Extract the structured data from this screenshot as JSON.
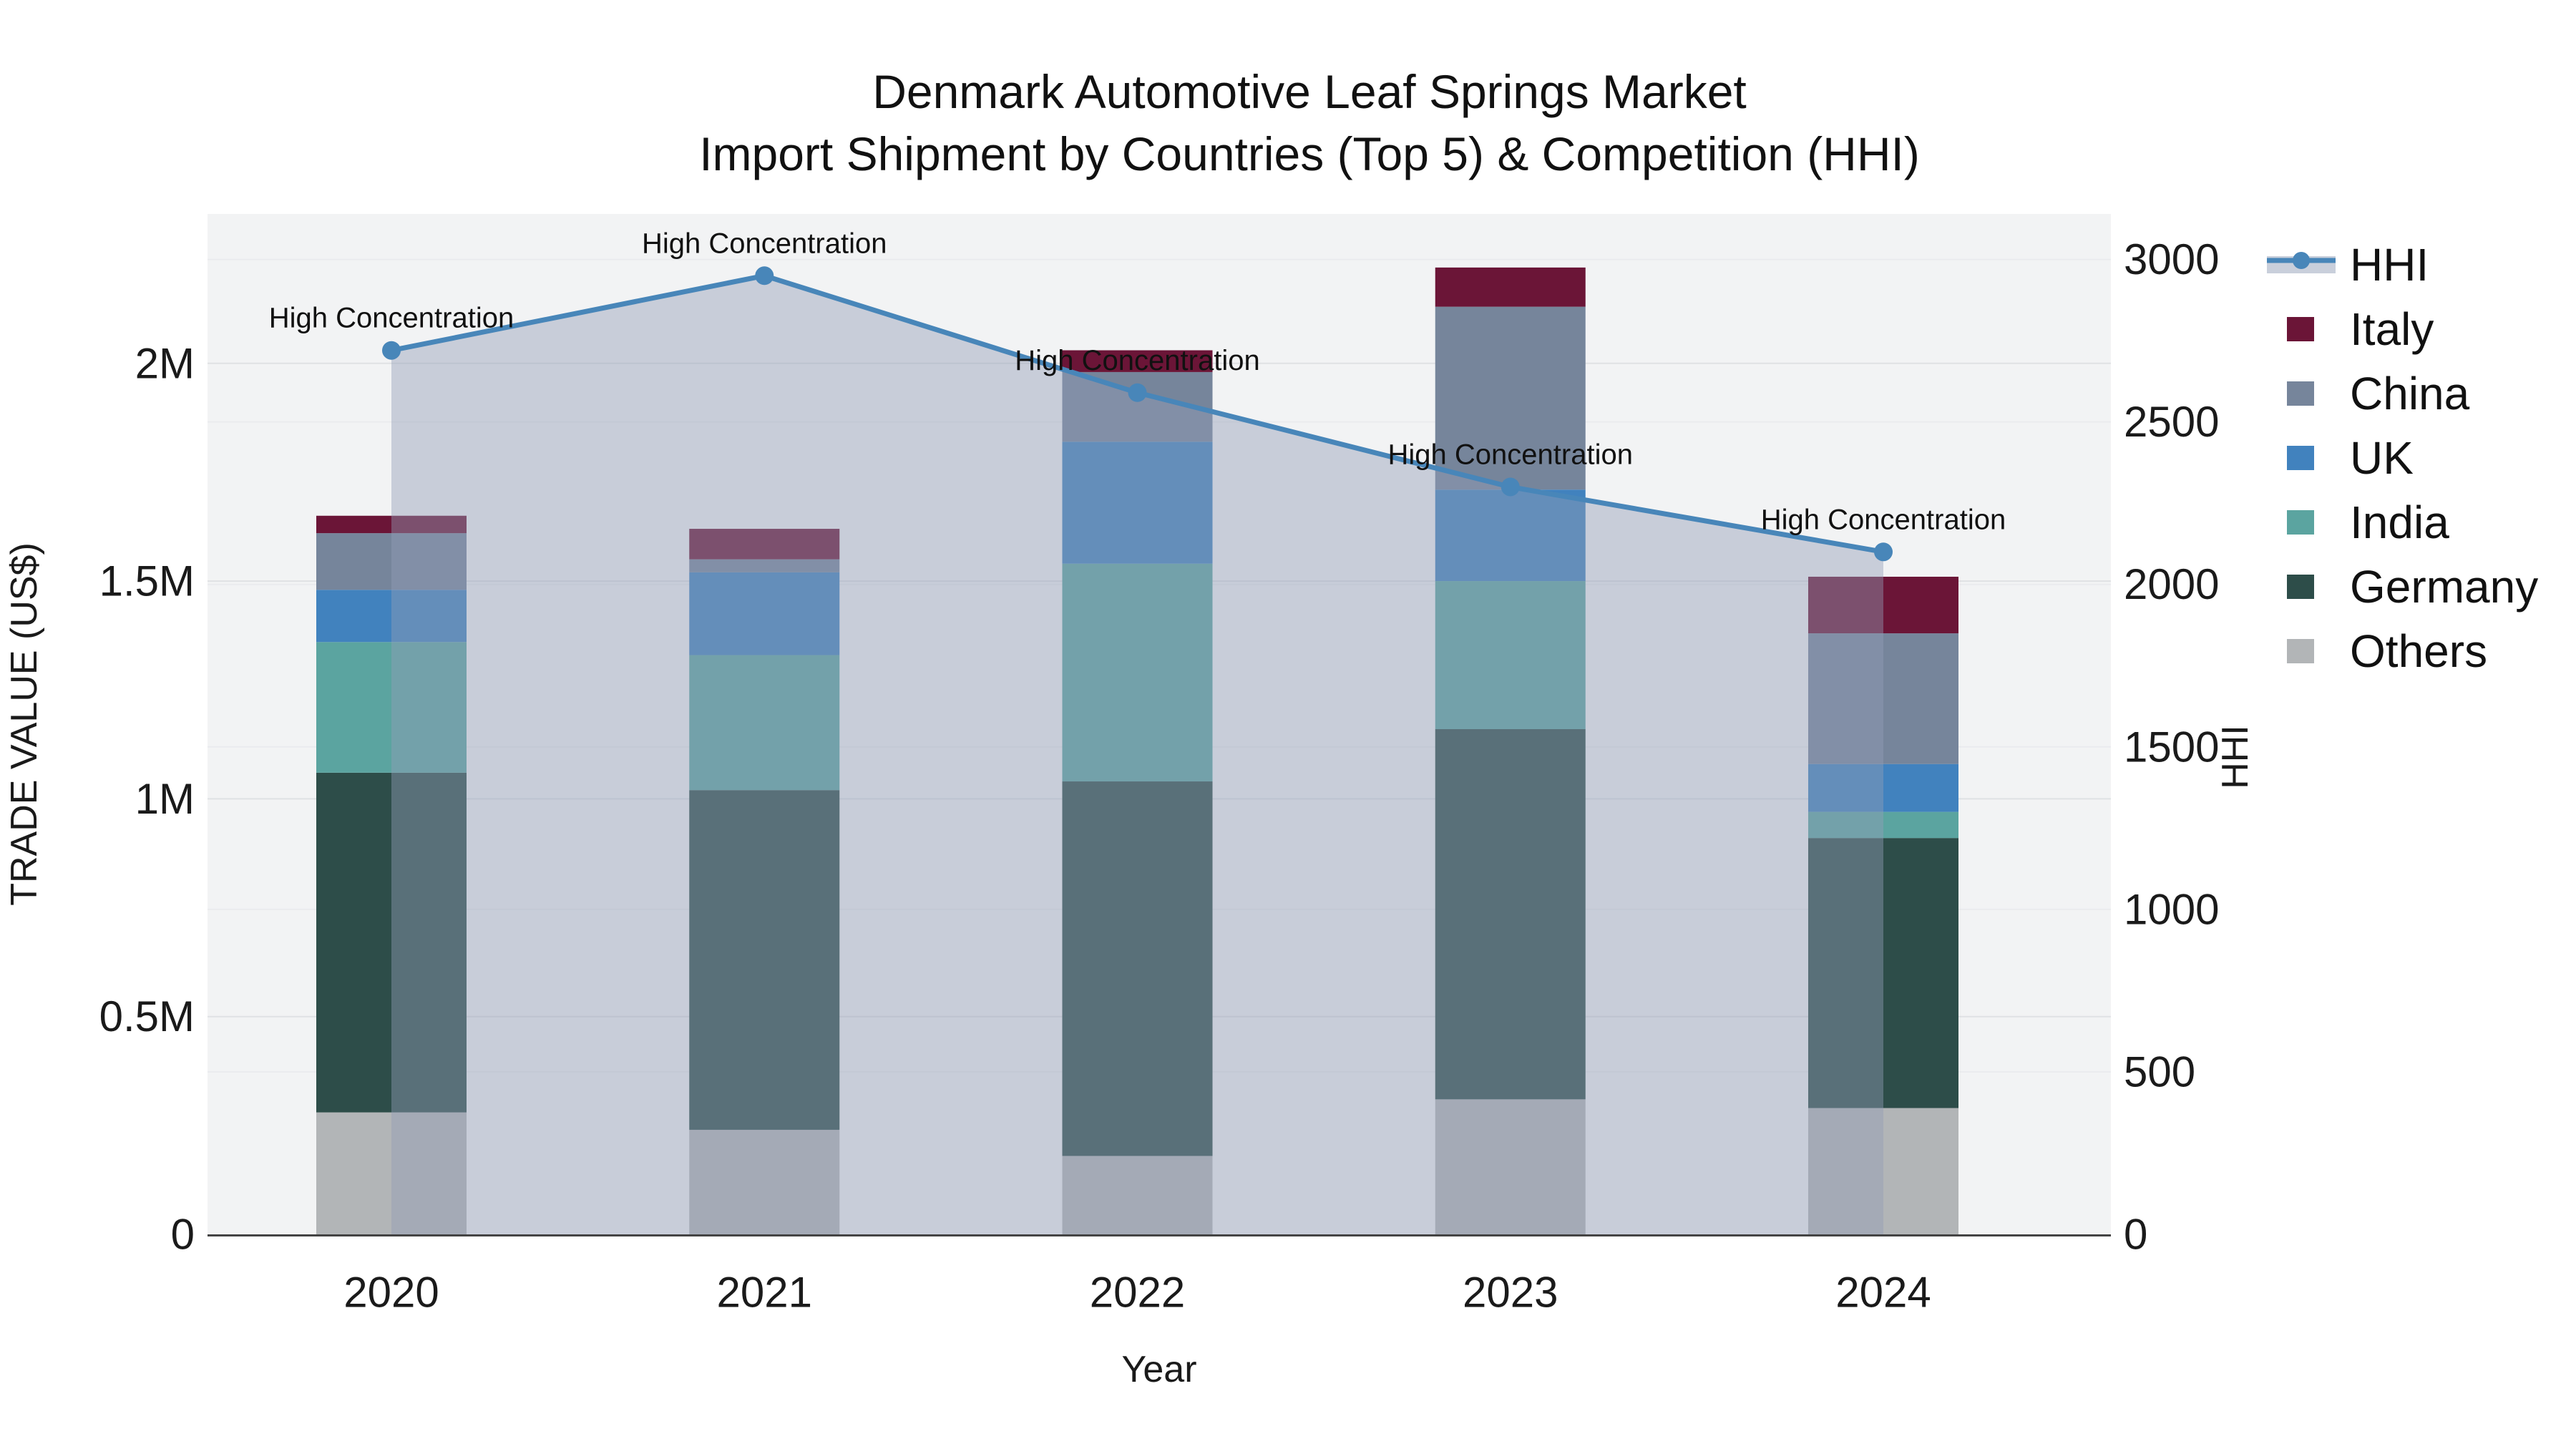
{
  "title": {
    "line1": "Denmark Automotive Leaf Springs Market",
    "line2": "Import Shipment by Countries (Top 5) & Competition (HHI)"
  },
  "chart_data": {
    "type": "bar+line",
    "categories": [
      "2020",
      "2021",
      "2022",
      "2023",
      "2024"
    ],
    "xlabel": "Year",
    "ylabel_left": "TRADE VALUE (US$)",
    "ylabel_right": "HHI",
    "ylim_left": [
      0,
      2343000
    ],
    "ylim_right": [
      0,
      3140
    ],
    "grid": true,
    "plot_bg": "#f2f3f4",
    "axis_line_color": "#444444",
    "yticks_left": [
      {
        "v": 0,
        "label": "0"
      },
      {
        "v": 500000,
        "label": "0.5M"
      },
      {
        "v": 1000000,
        "label": "1M"
      },
      {
        "v": 1500000,
        "label": "1.5M"
      },
      {
        "v": 2000000,
        "label": "2M"
      }
    ],
    "yticks_right": [
      {
        "v": 0,
        "label": "0"
      },
      {
        "v": 500,
        "label": "500"
      },
      {
        "v": 1000,
        "label": "1000"
      },
      {
        "v": 1500,
        "label": "1500"
      },
      {
        "v": 2000,
        "label": "2000"
      },
      {
        "v": 2500,
        "label": "2500"
      },
      {
        "v": 3000,
        "label": "3000"
      }
    ],
    "stack_order_bottom_to_top": [
      "Others",
      "Germany",
      "India",
      "UK",
      "China",
      "Italy"
    ],
    "series": [
      {
        "name": "Italy",
        "color": "#6b1537",
        "values": [
          40000,
          70000,
          50000,
          90000,
          130000
        ]
      },
      {
        "name": "China",
        "color": "#76859b",
        "values": [
          130000,
          30000,
          160000,
          420000,
          300000
        ]
      },
      {
        "name": "UK",
        "color": "#4182be",
        "values": [
          120000,
          190000,
          280000,
          210000,
          110000
        ]
      },
      {
        "name": "India",
        "color": "#5ba4a0",
        "values": [
          300000,
          310000,
          500000,
          340000,
          60000
        ]
      },
      {
        "name": "Germany",
        "color": "#2d4d49",
        "values": [
          780000,
          780000,
          860000,
          850000,
          620000
        ]
      },
      {
        "name": "Others",
        "color": "#b2b5b7",
        "values": [
          280000,
          240000,
          180000,
          310000,
          290000
        ]
      }
    ],
    "totals": [
      1650000,
      1620000,
      2030000,
      2220000,
      1510000
    ],
    "hhi": {
      "name": "HHI",
      "line_color": "#4886b9",
      "area_fill": "rgba(145,158,182,0.44)",
      "legend_band_color": "#c9cfdb",
      "values": [
        2720,
        2950,
        2590,
        2300,
        2100
      ]
    },
    "annotations": [
      {
        "text": "High Concentration",
        "year": "2020"
      },
      {
        "text": "High Concentration",
        "year": "2021"
      },
      {
        "text": "High Concentration",
        "year": "2022"
      },
      {
        "text": "High Concentration",
        "year": "2023"
      },
      {
        "text": "High Concentration",
        "year": "2024"
      }
    ],
    "legend": {
      "position": "right",
      "items": [
        "HHI",
        "Italy",
        "China",
        "UK",
        "India",
        "Germany",
        "Others"
      ]
    }
  }
}
